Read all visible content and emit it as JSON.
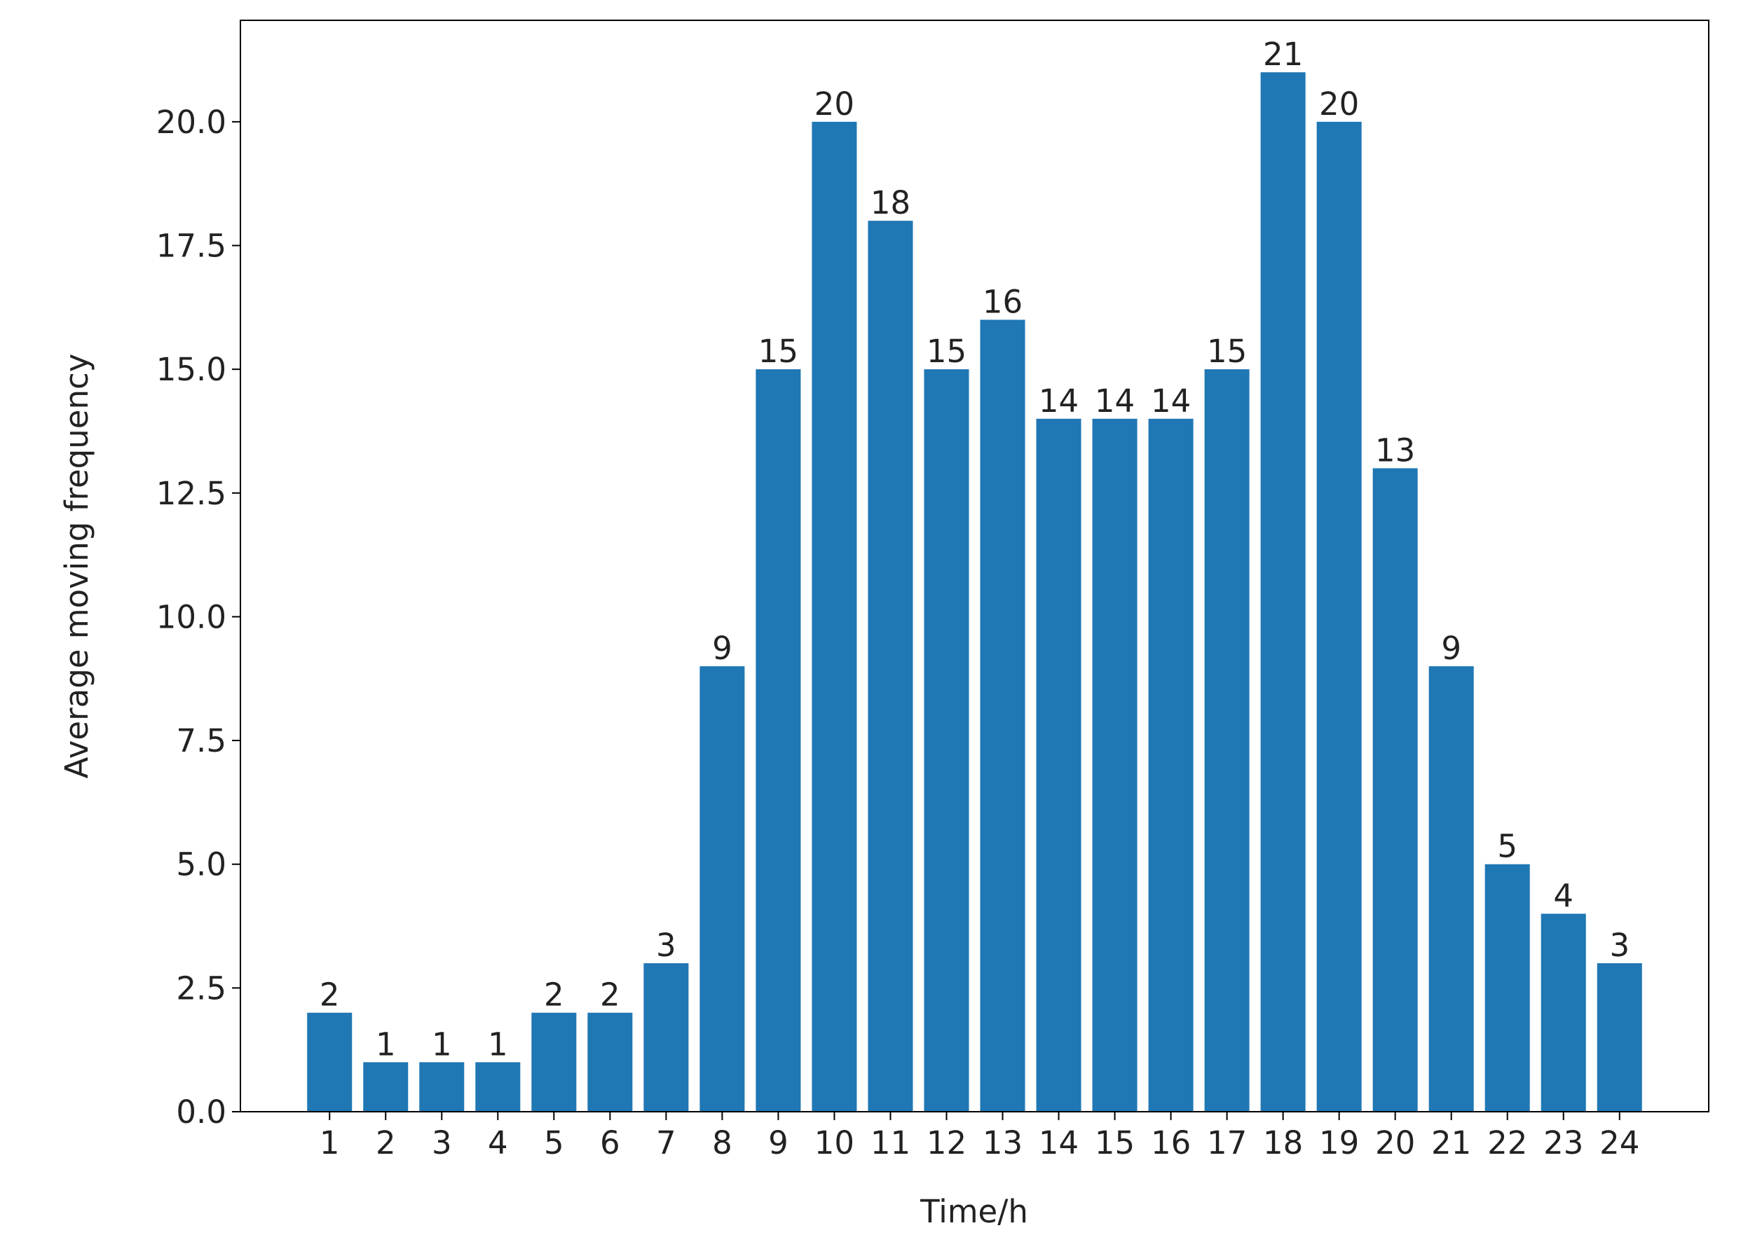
{
  "chart_data": {
    "type": "bar",
    "x": [
      1,
      2,
      3,
      4,
      5,
      6,
      7,
      8,
      9,
      10,
      11,
      12,
      13,
      14,
      15,
      16,
      17,
      18,
      19,
      20,
      21,
      22,
      23,
      24
    ],
    "values": [
      2,
      1,
      1,
      1,
      2,
      2,
      3,
      9,
      15,
      20,
      18,
      15,
      16,
      14,
      14,
      14,
      15,
      21,
      20,
      13,
      9,
      5,
      4,
      3
    ],
    "color": "#1f77b4",
    "xlabel": "Time/h",
    "ylabel": "Average moving frequency",
    "xlim": [
      -0.59,
      25.59
    ],
    "ylim": [
      0,
      22.05
    ],
    "xticks": [
      1,
      2,
      3,
      4,
      5,
      6,
      7,
      8,
      9,
      10,
      11,
      12,
      13,
      14,
      15,
      16,
      17,
      18,
      19,
      20,
      21,
      22,
      23,
      24
    ],
    "yticks": [
      {
        "value": 0,
        "label": "0.0"
      },
      2.5,
      {
        "value": 5,
        "label": "5.0"
      },
      7.5,
      {
        "value": 10,
        "label": "10.0"
      },
      12.5,
      {
        "value": 15,
        "label": "15.0"
      },
      17.5,
      {
        "value": 20,
        "label": "20.0"
      }
    ],
    "grid": false
  }
}
